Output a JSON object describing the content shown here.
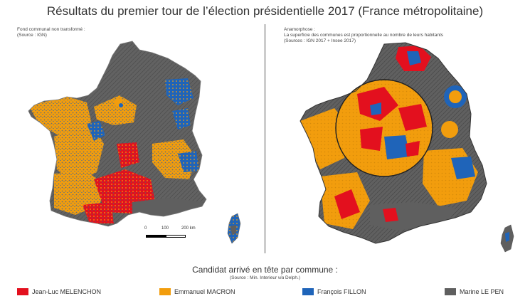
{
  "title": "Résultats du premier tour de l’élection présidentielle 2017 (France métropolitaine)",
  "left_panel": {
    "note_line1": "Fond communal non transformé :",
    "note_line2": "(Source : IGN)"
  },
  "right_panel": {
    "note_line1": "Anamorphose :",
    "note_line2": "La superficie des communes est proportionnelle au nombre de leurs habitants",
    "note_line3": "(Sources : IGN 2017 + Insee 2017)"
  },
  "scale": {
    "ticks": [
      "0",
      "100",
      "200 km"
    ]
  },
  "legend": {
    "title": "Candidat arrivé en tête par commune :",
    "source_prefix": "(Source : Min. Interieur ",
    "source_via": "via",
    "source_suffix": " Delph.)",
    "items": [
      {
        "label": "Jean-Luc MELENCHON",
        "color": "#e3101e"
      },
      {
        "label": "Emmanuel MACRON",
        "color": "#f29d0d"
      },
      {
        "label": "François FILLON",
        "color": "#1f64b9"
      },
      {
        "label": "Marine LE PEN",
        "color": "#5f5f5f"
      }
    ]
  }
}
